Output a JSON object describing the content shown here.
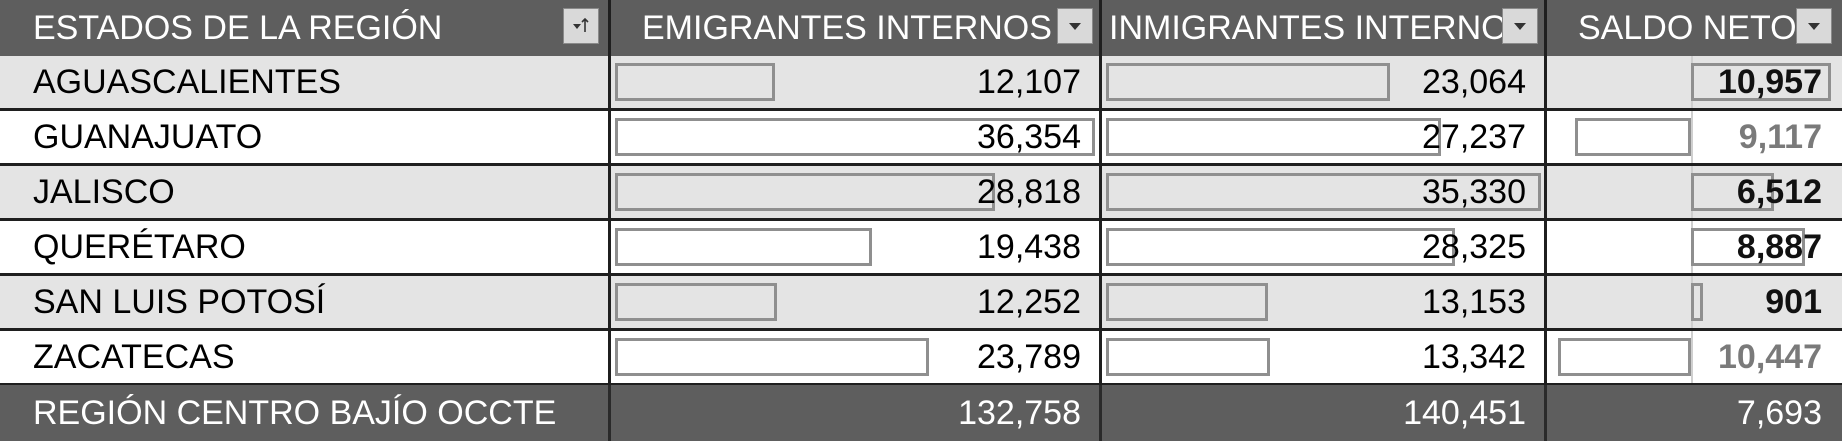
{
  "header": {
    "col_state": "ESTADOS DE LA REGIÓN",
    "col_emig": "EMIGRANTES INTERNOS",
    "col_inmig": "INMIGRANTES INTERNOS",
    "col_saldo": "SALDO NETO",
    "filter_icons": [
      "sort-filter-icon",
      "filter-dropdown-icon",
      "filter-dropdown-icon",
      "filter-dropdown-icon"
    ]
  },
  "rows": [
    {
      "state": "AGUASCALIENTES",
      "emig": "12,107",
      "inmig": "23,064",
      "saldo": "10,957",
      "saldo_sign": "pos",
      "emig_value": 12107,
      "inmig_value": 23064,
      "saldo_value": 10957
    },
    {
      "state": "GUANAJUATO",
      "emig": "36,354",
      "inmig": "27,237",
      "saldo": "9,117",
      "saldo_sign": "neg",
      "emig_value": 36354,
      "inmig_value": 27237,
      "saldo_value": -9117
    },
    {
      "state": "JALISCO",
      "emig": "28,818",
      "inmig": "35,330",
      "saldo": "6,512",
      "saldo_sign": "pos",
      "emig_value": 28818,
      "inmig_value": 35330,
      "saldo_value": 6512
    },
    {
      "state": "QUERÉTARO",
      "emig": "19,438",
      "inmig": "28,325",
      "saldo": "8,887",
      "saldo_sign": "pos",
      "emig_value": 19438,
      "inmig_value": 28325,
      "saldo_value": 8887
    },
    {
      "state": "SAN LUIS POTOSÍ",
      "emig": "12,252",
      "inmig": "13,153",
      "saldo": "901",
      "saldo_sign": "pos",
      "emig_value": 12252,
      "inmig_value": 13153,
      "saldo_value": 901
    },
    {
      "state": "ZACATECAS",
      "emig": "23,789",
      "inmig": "13,342",
      "saldo": "10,447",
      "saldo_sign": "neg",
      "emig_value": 23789,
      "inmig_value": 13342,
      "saldo_value": -10447
    }
  ],
  "total": {
    "label": "REGIÓN CENTRO BAJÍO OCCTE",
    "emig": "132,758",
    "inmig": "140,451",
    "saldo": "7,693"
  },
  "colors": {
    "header_bg": "#5e5e5e",
    "header_text": "#ffffff",
    "row_alt_bg": "#e4e4e4",
    "row_plain_bg": "#ffffff",
    "bar_border": "#8f8f8f",
    "negative_text": "#7a7a7a"
  }
}
